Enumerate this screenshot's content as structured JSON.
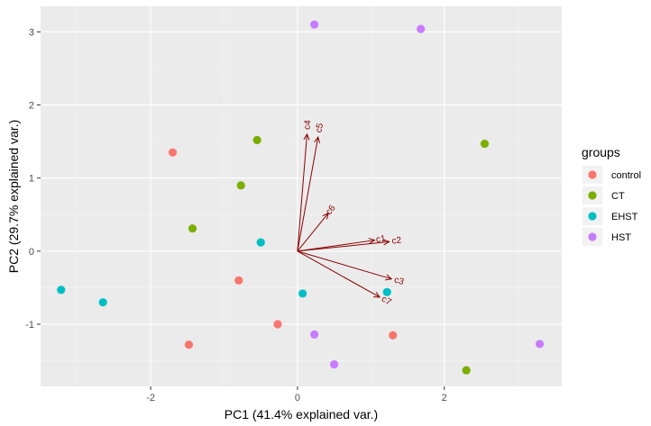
{
  "chart_data": {
    "type": "scatter",
    "title": "",
    "xlabel": "PC1 (41.4% explained var.)",
    "ylabel": "PC2 (29.7% explained var.)",
    "xlim": [
      -3.5,
      3.6
    ],
    "ylim": [
      -1.85,
      3.35
    ],
    "x_ticks": [
      -2,
      0,
      2
    ],
    "y_ticks": [
      -1,
      0,
      1,
      2,
      3
    ],
    "legend": {
      "title": "groups",
      "placement": "right",
      "entries": [
        {
          "name": "control",
          "color": "#F8766D"
        },
        {
          "name": "CT",
          "color": "#7CAE00"
        },
        {
          "name": "EHST",
          "color": "#00BFC4"
        },
        {
          "name": "HST",
          "color": "#C77CFF"
        }
      ]
    },
    "series": [
      {
        "name": "control",
        "color": "#F8766D",
        "points": [
          {
            "x": -1.7,
            "y": 1.35
          },
          {
            "x": -0.8,
            "y": -0.4
          },
          {
            "x": -0.27,
            "y": -1.0
          },
          {
            "x": -1.48,
            "y": -1.28
          },
          {
            "x": 1.3,
            "y": -1.15
          }
        ]
      },
      {
        "name": "CT",
        "color": "#7CAE00",
        "points": [
          {
            "x": -0.55,
            "y": 1.52
          },
          {
            "x": -0.77,
            "y": 0.9
          },
          {
            "x": -1.43,
            "y": 0.31
          },
          {
            "x": 2.55,
            "y": 1.47
          },
          {
            "x": 2.3,
            "y": -1.63
          }
        ]
      },
      {
        "name": "EHST",
        "color": "#00BFC4",
        "points": [
          {
            "x": -0.5,
            "y": 0.12
          },
          {
            "x": 0.07,
            "y": -0.58
          },
          {
            "x": 1.22,
            "y": -0.56
          },
          {
            "x": -3.22,
            "y": -0.53
          },
          {
            "x": -2.65,
            "y": -0.7
          }
        ]
      },
      {
        "name": "HST",
        "color": "#C77CFF",
        "points": [
          {
            "x": 0.23,
            "y": 3.1
          },
          {
            "x": 1.68,
            "y": 3.04
          },
          {
            "x": 0.23,
            "y": -1.14
          },
          {
            "x": 0.5,
            "y": -1.55
          },
          {
            "x": 3.3,
            "y": -1.27
          }
        ]
      }
    ],
    "loadings": {
      "color": "#8B0000",
      "vectors": [
        {
          "name": "c1",
          "x": 1.05,
          "y": 0.15
        },
        {
          "name": "c2",
          "x": 1.25,
          "y": 0.13
        },
        {
          "name": "c3",
          "x": 1.28,
          "y": -0.38
        },
        {
          "name": "c4",
          "x": 0.13,
          "y": 1.6
        },
        {
          "name": "c5",
          "x": 0.28,
          "y": 1.56
        },
        {
          "name": "c6",
          "x": 0.42,
          "y": 0.52
        },
        {
          "name": "c7",
          "x": 1.12,
          "y": -0.63
        }
      ]
    }
  }
}
